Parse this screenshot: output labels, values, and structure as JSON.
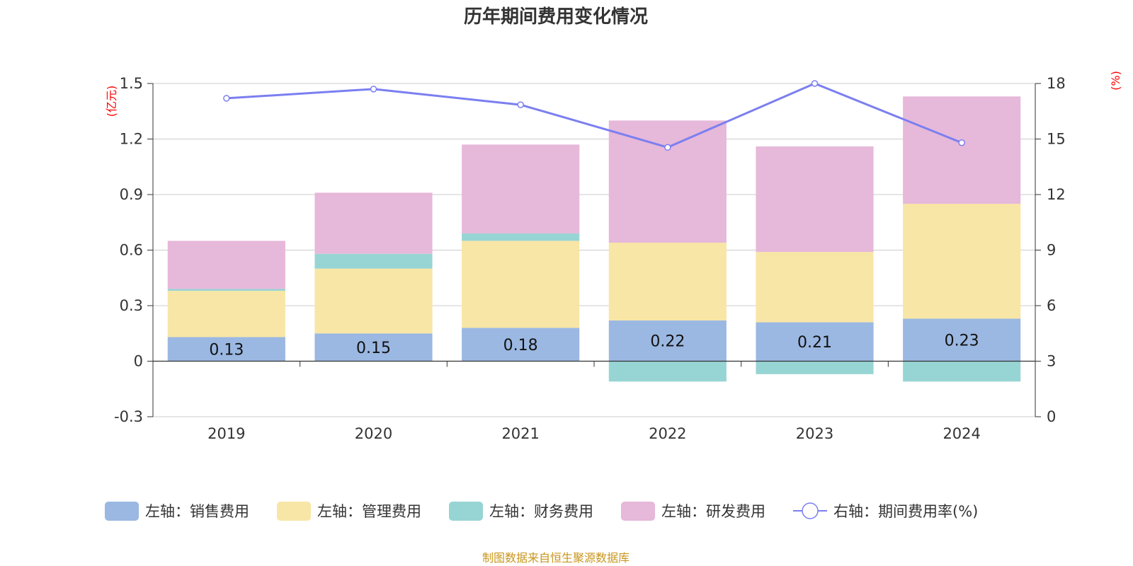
{
  "chart_data": {
    "type": "bar",
    "title": "历年期间费用变化情况",
    "categories": [
      "2019",
      "2020",
      "2021",
      "2022",
      "2023",
      "2024"
    ],
    "left_axis": {
      "unit": "(亿元)",
      "ylim": [
        -0.3,
        1.5
      ],
      "ticks": [
        "-0.3",
        "0",
        "0.3",
        "0.6",
        "0.9",
        "1.2",
        "1.5"
      ],
      "tick_values": [
        -0.3,
        0,
        0.3,
        0.6,
        0.9,
        1.2,
        1.5
      ]
    },
    "right_axis": {
      "unit": "(%)",
      "ylim": [
        0,
        18
      ],
      "ticks": [
        "0",
        "3",
        "6",
        "9",
        "12",
        "15",
        "18"
      ],
      "tick_values": [
        0,
        3,
        6,
        9,
        12,
        15,
        18
      ]
    },
    "series": [
      {
        "name": "左轴：销售费用",
        "kind": "bar",
        "axis": "left",
        "color": "#9bb8e2",
        "values": [
          0.13,
          0.15,
          0.18,
          0.22,
          0.21,
          0.23
        ],
        "labels": [
          "0.13",
          "0.15",
          "0.18",
          "0.22",
          "0.21",
          "0.23"
        ]
      },
      {
        "name": "左轴：管理费用",
        "kind": "bar",
        "axis": "left",
        "color": "#f8e6a6",
        "values": [
          0.25,
          0.35,
          0.47,
          0.42,
          0.38,
          0.62
        ]
      },
      {
        "name": "左轴：财务费用",
        "kind": "bar",
        "axis": "left",
        "color": "#97d5d4",
        "values": [
          0.01,
          0.08,
          0.04,
          -0.11,
          -0.07,
          -0.11
        ]
      },
      {
        "name": "左轴：研发费用",
        "kind": "bar",
        "axis": "left",
        "color": "#e6b8d9",
        "values": [
          0.26,
          0.33,
          0.48,
          0.66,
          0.57,
          0.58
        ]
      },
      {
        "name": "右轴：期间费用率(%)",
        "kind": "line",
        "axis": "right",
        "color": "#7b7ff0",
        "values": [
          17.2,
          17.7,
          16.85,
          14.55,
          18.0,
          14.8
        ]
      }
    ],
    "legend_position": "bottom",
    "grid": true,
    "source": "制图数据来自恒生聚源数据库"
  }
}
